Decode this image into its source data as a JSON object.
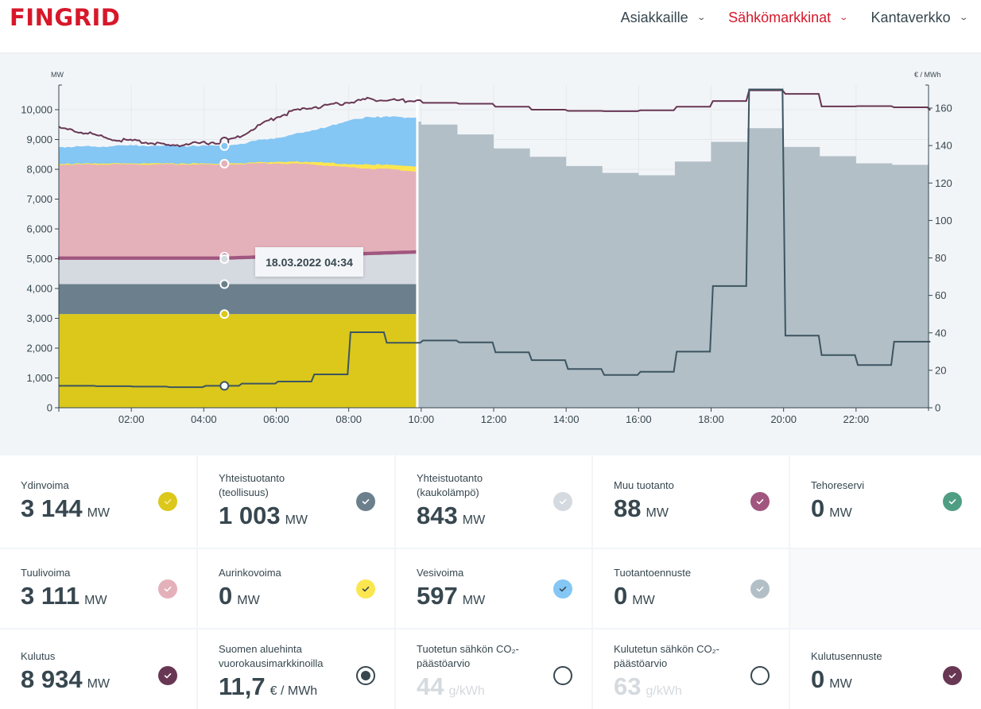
{
  "header": {
    "logo": "FINGRID",
    "nav": [
      {
        "label": "Asiakkaille",
        "active": false
      },
      {
        "label": "Sähkömarkkinat",
        "active": true
      },
      {
        "label": "Kantaverkko",
        "active": false
      }
    ]
  },
  "tooltip": "18.03.2022 04:34",
  "chart_data": {
    "type": "area",
    "title": "",
    "ylabel": "MW",
    "y2label": "€ / MWh",
    "ylim": [
      0,
      10800
    ],
    "y2lim": [
      0,
      170
    ],
    "yticks": [
      "0",
      "1,000",
      "2,000",
      "3,000",
      "4,000",
      "5,000",
      "6,000",
      "7,000",
      "8,000",
      "9,000",
      "10,000"
    ],
    "y2ticks": [
      "0",
      "20",
      "40",
      "60",
      "80",
      "100",
      "120",
      "140",
      "160"
    ],
    "xticks": [
      "02:00",
      "04:00",
      "06:00",
      "08:00",
      "10:00",
      "12:00",
      "14:00",
      "16:00",
      "18:00",
      "20:00",
      "22:00"
    ],
    "grid": true,
    "current_time_hour": 9.87,
    "hover_time_hour": 4.57,
    "stacked_series_mw": [
      {
        "name": "Ydinvoima",
        "color": "#dbc81b",
        "hours": [
          0,
          4.57,
          9.87
        ],
        "values": [
          3144,
          3144,
          3144
        ]
      },
      {
        "name": "Yhteistuotanto (teollisuus)",
        "color": "#6b808c",
        "hours": [
          0,
          4.57,
          9.87
        ],
        "values": [
          1003,
          1003,
          1003
        ]
      },
      {
        "name": "Yhteistuotanto (kaukolämpö)",
        "color": "#d5dae0",
        "hours": [
          0,
          4.57,
          9.87
        ],
        "values": [
          843,
          843,
          1050
        ]
      },
      {
        "name": "Muu tuotanto",
        "color": "#a0567e",
        "hours": [
          0,
          4.57,
          9.87
        ],
        "values": [
          88,
          88,
          88
        ]
      },
      {
        "name": "Tuulivoima",
        "color": "#e4b1ba",
        "hours": [
          0,
          1,
          2,
          3,
          4.57,
          6,
          7,
          8,
          9,
          9.87
        ],
        "values": [
          3100,
          3120,
          3110,
          3120,
          3111,
          3100,
          3020,
          2880,
          2780,
          2680
        ]
      },
      {
        "name": "Aurinkovoima",
        "color": "#fbe650",
        "hours": [
          0,
          4.57,
          6,
          7,
          8,
          9,
          9.87
        ],
        "values": [
          0,
          0,
          20,
          60,
          80,
          120,
          140
        ]
      },
      {
        "name": "Vesivoima",
        "color": "#84c6f4",
        "hours": [
          0,
          1,
          2,
          3,
          4.57,
          5,
          6,
          7,
          8,
          8.5,
          9,
          9.87
        ],
        "values": [
          580,
          560,
          600,
          590,
          597,
          650,
          800,
          1050,
          1450,
          1600,
          1600,
          1650
        ]
      }
    ],
    "consumption_mw": {
      "name": "Kulutus",
      "color": "#683753",
      "hours": [
        0,
        0.5,
        1,
        1.5,
        2,
        2.5,
        3,
        3.5,
        4,
        4.57,
        5,
        5.5,
        6,
        6.5,
        7,
        7.5,
        8,
        8.5,
        9,
        9.5,
        9.87
      ],
      "values": [
        9380,
        9280,
        9150,
        9000,
        8950,
        8900,
        8780,
        8850,
        8880,
        8934,
        9100,
        9450,
        9750,
        9950,
        10080,
        10150,
        10250,
        10350,
        10330,
        10300,
        10320
      ]
    },
    "consumption_forecast_mw": {
      "name": "Kulutusennuste",
      "color": "#683753",
      "hours": [
        9.87,
        10,
        11,
        12,
        13,
        14,
        15,
        16,
        17,
        18,
        19,
        20,
        21,
        22,
        23,
        24
      ],
      "values": [
        10320,
        10230,
        10200,
        10100,
        10000,
        9960,
        9950,
        9980,
        10100,
        10290,
        10650,
        10530,
        10110,
        10120,
        10080,
        9980
      ]
    },
    "production_forecast_mw": {
      "name": "Tuotantoennuste",
      "color": "#b2bfc7",
      "hours": [
        9.87,
        10,
        11,
        12,
        13,
        14,
        15,
        16,
        17,
        18,
        19,
        20,
        21,
        22,
        23,
        24
      ],
      "values": [
        9600,
        9500,
        9170,
        8700,
        8420,
        8110,
        7880,
        7800,
        8260,
        8920,
        9380,
        8750,
        8440,
        8200,
        8150,
        8150
      ]
    },
    "price_eur_mwh": {
      "name": "Suomen aluehinta vuorokausimarkkinoilla",
      "color": "#3d5561",
      "hours": [
        0,
        1,
        2,
        3,
        4,
        5,
        6,
        7,
        8,
        9,
        10,
        11,
        12,
        13,
        14,
        15,
        16,
        17,
        18,
        19,
        20,
        21,
        22,
        23,
        24
      ],
      "values": [
        11.7,
        11.5,
        11.3,
        11.0,
        11.7,
        12.9,
        14.0,
        17.8,
        40.3,
        34.7,
        35.9,
        34.9,
        29.6,
        25.4,
        20.7,
        17.5,
        19.2,
        30.0,
        65.0,
        170.0,
        38.5,
        28.1,
        22.8,
        35.3,
        35.3
      ]
    }
  },
  "cards": [
    {
      "label": "Ydinvoima",
      "value": "3 144",
      "unit": "MW",
      "color": "#dbc81b",
      "check_color": "#f6ed9c",
      "type": "check"
    },
    {
      "label": "Yhteistuotanto\n(teollisuus)",
      "value": "1 003",
      "unit": "MW",
      "color": "#6b808c",
      "check_color": "#ffffff",
      "type": "check"
    },
    {
      "label": "Yhteistuotanto\n(kaukolämpö)",
      "value": "843",
      "unit": "MW",
      "color": "#d5dae0",
      "check_color": "#ffffff",
      "type": "check"
    },
    {
      "label": "Muu tuotanto",
      "value": "88",
      "unit": "MW",
      "color": "#a0567e",
      "check_color": "#ffffff",
      "type": "check"
    },
    {
      "label": "Tehoreservi",
      "value": "0",
      "unit": "MW",
      "color": "#4f9e83",
      "check_color": "#ffffff",
      "type": "check"
    },
    {
      "label": "Tuulivoima",
      "value": "3 111",
      "unit": "MW",
      "color": "#e4b1ba",
      "check_color": "#ffffff",
      "type": "check"
    },
    {
      "label": "Aurinkovoima",
      "value": "0",
      "unit": "MW",
      "color": "#fbe650",
      "check_color": "#37474f",
      "type": "check"
    },
    {
      "label": "Vesivoima",
      "value": "597",
      "unit": "MW",
      "color": "#84c6f4",
      "check_color": "#37474f",
      "type": "check"
    },
    {
      "label": "Tuotantoennuste",
      "value": "0",
      "unit": "MW",
      "color": "#b2bfc7",
      "check_color": "#ffffff",
      "type": "check"
    },
    null,
    {
      "label": "Kulutus",
      "value": "8 934",
      "unit": "MW",
      "color": "#683753",
      "check_color": "#ffffff",
      "type": "check"
    },
    {
      "label": "Suomen aluehinta\nvuorokausimarkkinoilla",
      "value": "11,7",
      "unit": "€ / MWh",
      "color": "#37474f",
      "type": "radio-on"
    },
    {
      "label": "Tuotetun sähkön CO₂-\npäästöarvio",
      "value": "44",
      "unit": "g/kWh",
      "color": "#37474f",
      "type": "radio-off",
      "dim": true
    },
    {
      "label": "Kulutetun sähkön CO₂-\npäästöarvio",
      "value": "63",
      "unit": "g/kWh",
      "color": "#37474f",
      "type": "radio-off",
      "dim": true
    },
    {
      "label": "Kulutusennuste",
      "value": "0",
      "unit": "MW",
      "color": "#683753",
      "check_color": "#ffffff",
      "type": "check"
    }
  ]
}
